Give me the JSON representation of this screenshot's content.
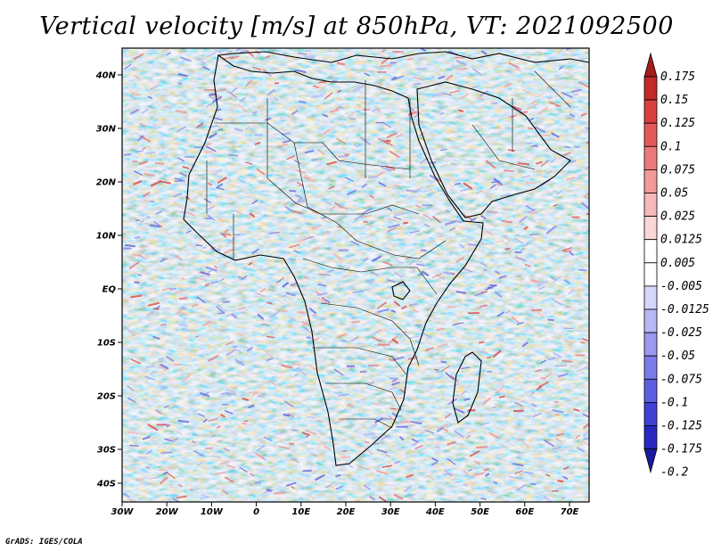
{
  "title": "Vertical velocity [m/s] at 850hPa, VT: 2021092500",
  "credit": "GrADS: IGES/COLA",
  "lat_labels": [
    "40N",
    "30N",
    "20N",
    "10N",
    "EQ",
    "10S",
    "20S",
    "30S",
    "40S"
  ],
  "lon_labels": [
    "30W",
    "20W",
    "10W",
    "0",
    "10E",
    "20E",
    "30E",
    "40E",
    "50E",
    "60E",
    "70E"
  ],
  "colorbar": {
    "labels": [
      "0.175",
      "0.15",
      "0.125",
      "0.1",
      "0.075",
      "0.05",
      "0.025",
      "0.0125",
      "0.005",
      "-0.005",
      "-0.0125",
      "-0.025",
      "-0.05",
      "-0.075",
      "-0.1",
      "-0.125",
      "-0.175",
      "-0.2"
    ],
    "colors": [
      "#a51c1c",
      "#c42828",
      "#d84040",
      "#e45a5a",
      "#ec7a7a",
      "#f29a9a",
      "#f6b8b8",
      "#fad6d6",
      "#ffffff",
      "#ffffff",
      "#d6d6fa",
      "#b8b8f6",
      "#9a9af0",
      "#7c7ce8",
      "#5e5ee0",
      "#4040d4",
      "#2828c0",
      "#1a1aa0"
    ]
  }
}
